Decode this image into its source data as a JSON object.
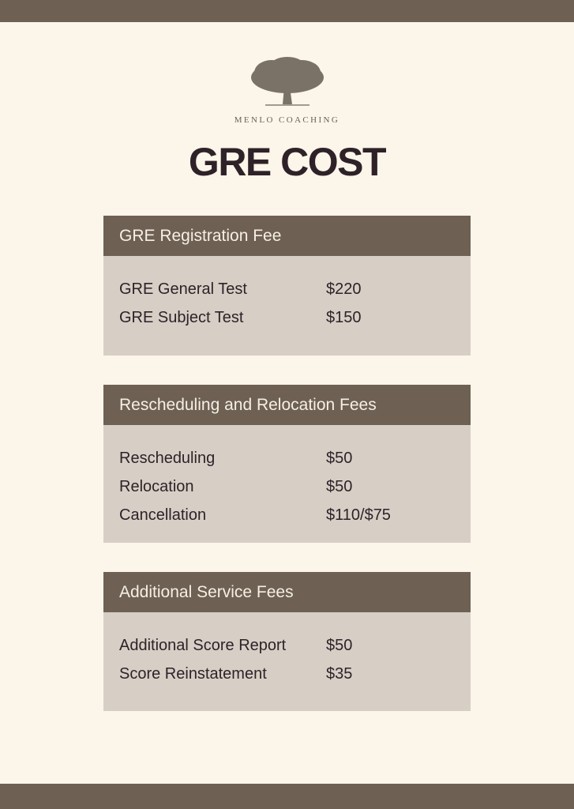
{
  "brand": "MENLO COACHING",
  "title": "GRE COST",
  "colors": {
    "bar": "#6e6053",
    "panel": "#d7cfc6",
    "background": "#fbf5ea",
    "title": "#2e2228"
  },
  "logo_icon": "oak-tree-icon",
  "sections": [
    {
      "heading": "GRE Registration Fee",
      "rows": [
        {
          "label": "GRE General Test",
          "value": "$220"
        },
        {
          "label": "GRE Subject Test",
          "value": "$150"
        }
      ]
    },
    {
      "heading": "Rescheduling and Relocation Fees",
      "rows": [
        {
          "label": "Rescheduling",
          "value": "$50"
        },
        {
          "label": "Relocation",
          "value": "$50"
        },
        {
          "label": "Cancellation",
          "value": "$110/$75"
        }
      ]
    },
    {
      "heading": "Additional Service Fees",
      "rows": [
        {
          "label": "Additional Score Report",
          "value": "$50"
        },
        {
          "label": "Score Reinstatement",
          "value": "$35"
        }
      ]
    }
  ]
}
